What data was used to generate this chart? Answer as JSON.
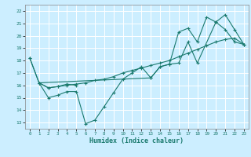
{
  "title": "",
  "xlabel": "Humidex (Indice chaleur)",
  "background_color": "#cceeff",
  "grid_color": "#ffffff",
  "line_color": "#1a7a6e",
  "xlim": [
    -0.5,
    23.5
  ],
  "ylim": [
    12.5,
    22.5
  ],
  "yticks": [
    13,
    14,
    15,
    16,
    17,
    18,
    19,
    20,
    21,
    22
  ],
  "xticks": [
    0,
    1,
    2,
    3,
    4,
    5,
    6,
    7,
    8,
    9,
    10,
    11,
    12,
    13,
    14,
    15,
    16,
    17,
    18,
    19,
    20,
    21,
    22,
    23
  ],
  "lines": [
    {
      "x": [
        0,
        1,
        2,
        3,
        4,
        5,
        6,
        7,
        8,
        9,
        10,
        11,
        12,
        13,
        14,
        15,
        16,
        17,
        18,
        20,
        21,
        22,
        23
      ],
      "y": [
        18.2,
        16.2,
        15.0,
        15.2,
        15.5,
        15.5,
        12.9,
        13.2,
        14.3,
        15.4,
        16.5,
        17.0,
        17.5,
        16.6,
        17.5,
        17.7,
        17.8,
        19.5,
        17.8,
        21.1,
        20.5,
        19.5,
        19.3
      ]
    },
    {
      "x": [
        1,
        2,
        3,
        4,
        5
      ],
      "y": [
        16.2,
        15.8,
        15.9,
        16.1,
        16.0
      ]
    },
    {
      "x": [
        1,
        2,
        3,
        4,
        5,
        6,
        7,
        8,
        9,
        10,
        11,
        12,
        13,
        14,
        15,
        16,
        17,
        18,
        19,
        20,
        21,
        22,
        23
      ],
      "y": [
        16.2,
        15.8,
        15.9,
        16.0,
        16.1,
        16.2,
        16.4,
        16.5,
        16.7,
        17.0,
        17.2,
        17.4,
        17.6,
        17.8,
        18.0,
        18.3,
        18.6,
        18.9,
        19.2,
        19.5,
        19.7,
        19.8,
        19.3
      ]
    },
    {
      "x": [
        0,
        1,
        13,
        14,
        15,
        16,
        17,
        18,
        19,
        20,
        21,
        22,
        23
      ],
      "y": [
        18.2,
        16.2,
        16.6,
        17.5,
        17.7,
        20.3,
        20.6,
        19.5,
        21.5,
        21.1,
        21.7,
        20.5,
        19.3
      ]
    }
  ]
}
